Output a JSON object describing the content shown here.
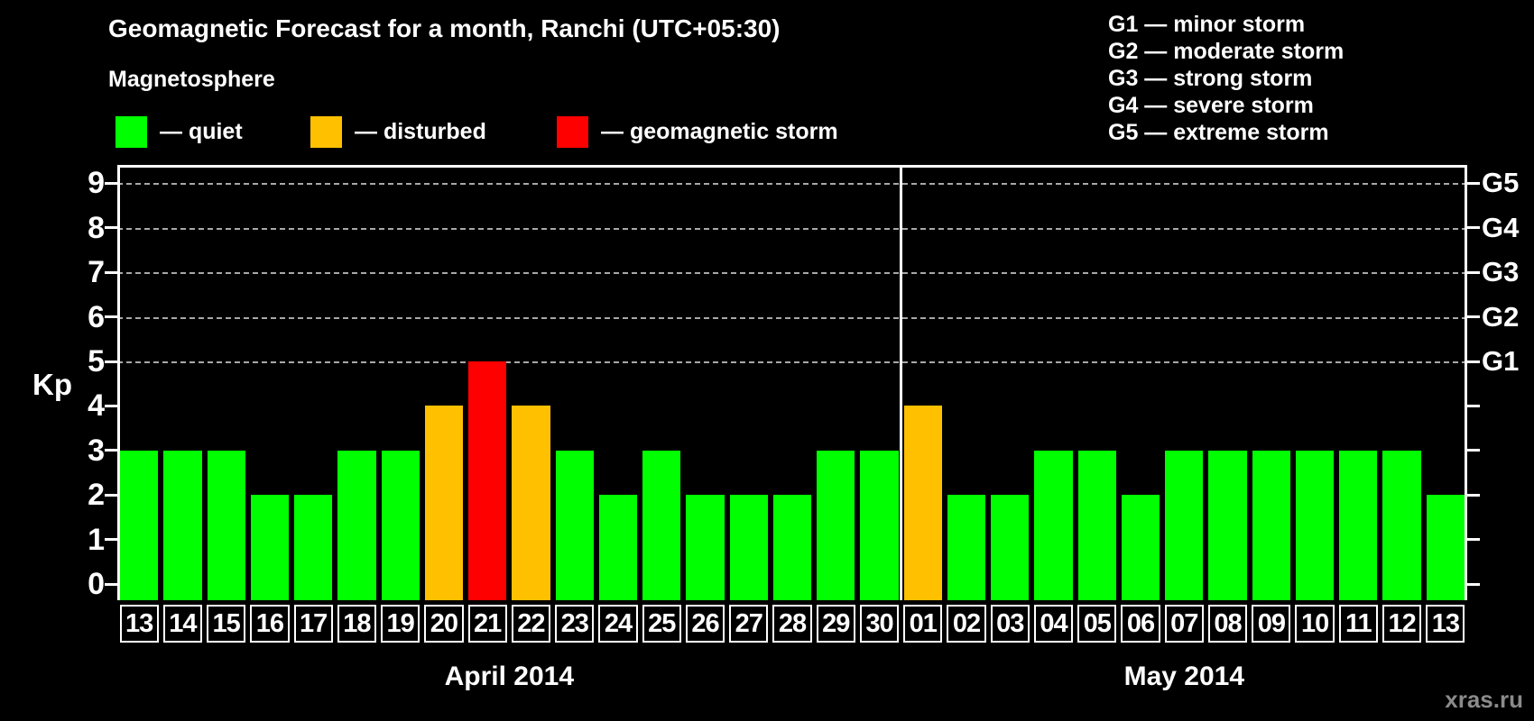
{
  "title": "Geomagnetic Forecast for a month, Ranchi (UTC+05:30)",
  "magnetosphere": {
    "title": "Magnetosphere",
    "items": [
      {
        "name": "quiet",
        "label": "— quiet",
        "color": "#00ff00"
      },
      {
        "name": "disturbed",
        "label": "— disturbed",
        "color": "#ffc000"
      },
      {
        "name": "storm",
        "label": "— geomagnetic storm",
        "color": "#ff0000"
      }
    ]
  },
  "g_legend": [
    "G1 — minor storm",
    "G2 — moderate storm",
    "G3 — strong storm",
    "G4 — severe storm",
    "G5 — extreme storm"
  ],
  "axes": {
    "kp_label": "Kp",
    "kp_ticks": [
      0,
      1,
      2,
      3,
      4,
      5,
      6,
      7,
      8,
      9
    ],
    "g_scale": [
      {
        "text": "G1",
        "kp": 5
      },
      {
        "text": "G2",
        "kp": 6
      },
      {
        "text": "G3",
        "kp": 7
      },
      {
        "text": "G4",
        "kp": 8
      },
      {
        "text": "G5",
        "kp": 9
      }
    ]
  },
  "months": [
    {
      "label": "April 2014",
      "start_index": 0,
      "count": 18
    },
    {
      "label": "May 2014",
      "start_index": 18,
      "count": 13
    }
  ],
  "watermark": "xras.ru",
  "colors": {
    "quiet": "#00ff00",
    "disturbed": "#ffc000",
    "storm": "#ff0000",
    "background": "#000000",
    "text": "#ffffff",
    "grid": "#a8a8a8",
    "watermark": "#8b8b8b"
  },
  "chart_data": {
    "type": "bar",
    "title": "Geomagnetic Forecast for a month, Ranchi (UTC+05:30)",
    "xlabel": "",
    "ylabel": "Kp",
    "ylim": [
      0,
      9.5
    ],
    "grid": "dashed horizontal at Kp 5-9",
    "gridlines_kp": [
      5,
      6,
      7,
      8,
      9
    ],
    "legend_position": "top",
    "month_separator_after_index": 17,
    "categories": [
      "Apr 13",
      "Apr 14",
      "Apr 15",
      "Apr 16",
      "Apr 17",
      "Apr 18",
      "Apr 19",
      "Apr 20",
      "Apr 21",
      "Apr 22",
      "Apr 23",
      "Apr 24",
      "Apr 25",
      "Apr 26",
      "Apr 27",
      "Apr 28",
      "Apr 29",
      "Apr 30",
      "May 01",
      "May 02",
      "May 03",
      "May 04",
      "May 05",
      "May 06",
      "May 07",
      "May 08",
      "May 09",
      "May 10",
      "May 11",
      "May 12",
      "May 13"
    ],
    "days": [
      "13",
      "14",
      "15",
      "16",
      "17",
      "18",
      "19",
      "20",
      "21",
      "22",
      "23",
      "24",
      "25",
      "26",
      "27",
      "28",
      "29",
      "30",
      "01",
      "02",
      "03",
      "04",
      "05",
      "06",
      "07",
      "08",
      "09",
      "10",
      "11",
      "12",
      "13"
    ],
    "values": [
      3,
      3,
      3,
      2,
      2,
      3,
      3,
      4,
      5,
      4,
      3,
      2,
      3,
      2,
      2,
      2,
      3,
      3,
      4,
      2,
      2,
      3,
      3,
      2,
      3,
      3,
      3,
      3,
      3,
      3,
      2
    ],
    "states": [
      "quiet",
      "quiet",
      "quiet",
      "quiet",
      "quiet",
      "quiet",
      "quiet",
      "disturbed",
      "storm",
      "disturbed",
      "quiet",
      "quiet",
      "quiet",
      "quiet",
      "quiet",
      "quiet",
      "quiet",
      "quiet",
      "disturbed",
      "quiet",
      "quiet",
      "quiet",
      "quiet",
      "quiet",
      "quiet",
      "quiet",
      "quiet",
      "quiet",
      "quiet",
      "quiet",
      "quiet"
    ]
  }
}
